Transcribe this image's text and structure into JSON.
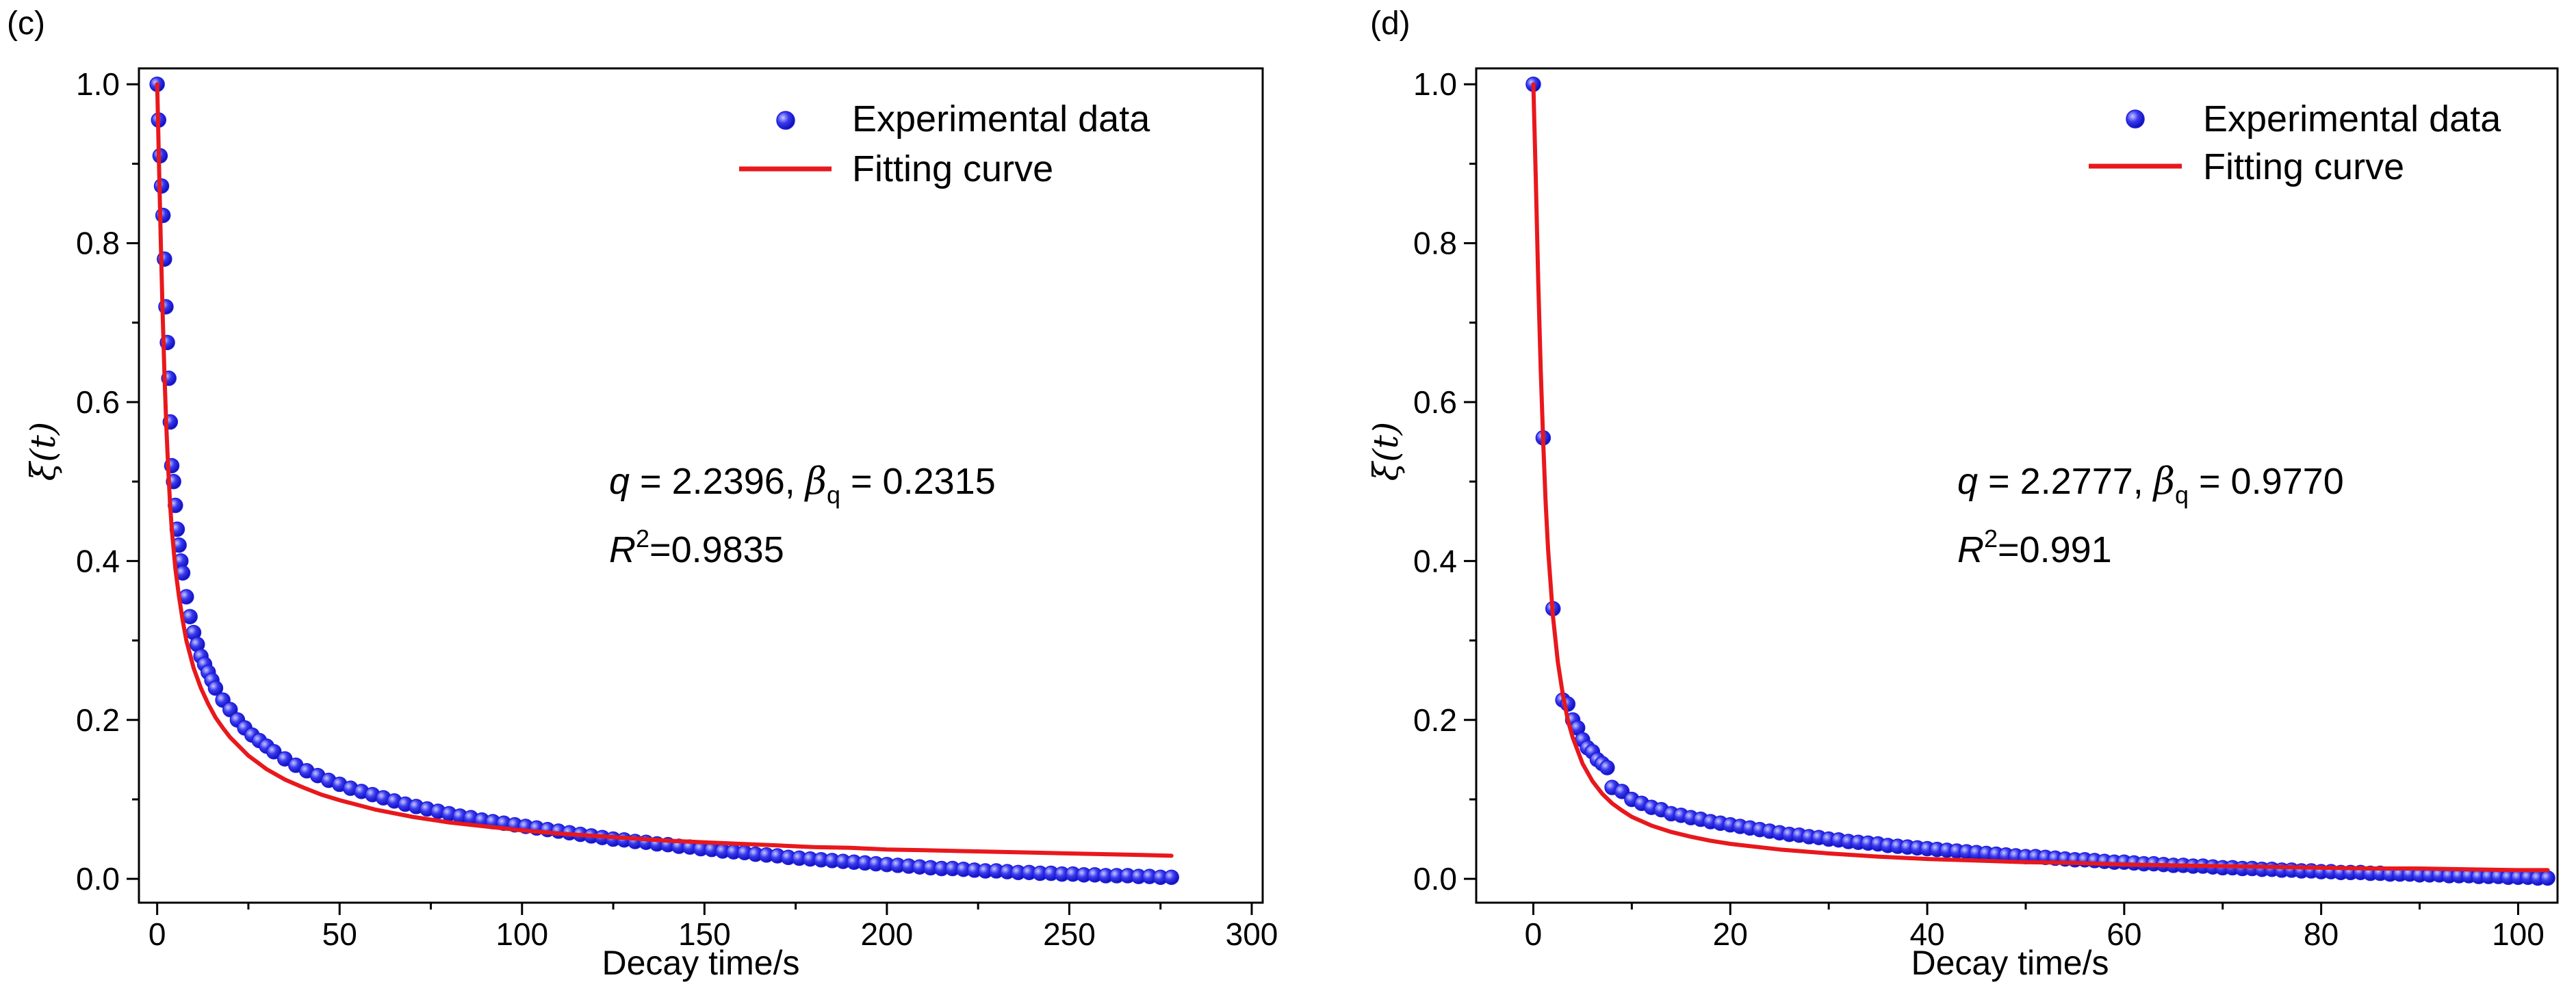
{
  "colors": {
    "data_marker": "#1d1de0",
    "data_marker_highlight": "#b7b7ff",
    "fit_line": "#e8181c",
    "axis": "#000000"
  },
  "chart_data": [
    {
      "panel_label": "(c)",
      "type": "scatter",
      "title": "",
      "xlabel": "Decay time/s",
      "ylabel": "ξ(t)",
      "xlim": [
        -5,
        303
      ],
      "ylim": [
        -0.03,
        1.02
      ],
      "xticks": [
        0,
        50,
        100,
        150,
        200,
        250,
        300
      ],
      "xtick_labels": [
        "0",
        "50",
        "100",
        "150",
        "200",
        "250",
        "300"
      ],
      "yticks": [
        0.0,
        0.2,
        0.4,
        0.6,
        0.8,
        1.0
      ],
      "ytick_labels": [
        "0.0",
        "0.2",
        "0.4",
        "0.6",
        "0.8",
        "1.0"
      ],
      "legend": [
        "Experimental data",
        "Fitting curve"
      ],
      "legend_position": "top-right",
      "annotation": {
        "q_symbol": "q",
        "q_text": " = 2.2396, ",
        "beta_symbol": "β",
        "beta_sub": "q",
        "beta_text": " = 0.2315",
        "r_symbol": "R",
        "r_sup": "2",
        "r_text": "=0.9835"
      },
      "series": [
        {
          "name": "Experimental data",
          "kind": "scatter",
          "x": [
            0,
            0.4,
            0.8,
            1.2,
            1.6,
            2,
            2.4,
            2.8,
            3.2,
            3.6,
            4,
            4.5,
            5,
            5.5,
            6,
            6.5,
            7,
            8,
            9,
            10,
            11,
            12,
            13,
            14,
            15,
            16,
            18,
            20,
            22,
            24,
            26,
            28,
            30,
            32,
            35,
            38,
            41,
            44,
            47,
            50,
            53,
            56,
            59,
            62,
            65,
            68,
            71,
            74,
            77,
            80,
            83,
            86,
            89,
            92,
            95,
            98,
            101,
            104,
            107,
            110,
            113,
            116,
            119,
            122,
            125,
            128,
            131,
            134,
            137,
            140,
            143,
            146,
            149,
            152,
            155,
            158,
            161,
            164,
            167,
            170,
            173,
            176,
            179,
            182,
            185,
            188,
            191,
            194,
            197,
            200,
            203,
            206,
            209,
            212,
            215,
            218,
            221,
            224,
            227,
            230,
            233,
            236,
            239,
            242,
            245,
            248,
            251,
            254,
            257,
            260,
            263,
            266,
            269,
            272,
            275,
            278
          ],
          "y": [
            1.0,
            0.955,
            0.91,
            0.872,
            0.835,
            0.78,
            0.72,
            0.675,
            0.63,
            0.575,
            0.52,
            0.5,
            0.47,
            0.44,
            0.42,
            0.4,
            0.385,
            0.355,
            0.33,
            0.31,
            0.295,
            0.28,
            0.27,
            0.26,
            0.25,
            0.24,
            0.225,
            0.213,
            0.2,
            0.19,
            0.181,
            0.174,
            0.167,
            0.16,
            0.151,
            0.143,
            0.136,
            0.13,
            0.124,
            0.119,
            0.114,
            0.11,
            0.106,
            0.102,
            0.098,
            0.094,
            0.091,
            0.088,
            0.085,
            0.082,
            0.079,
            0.077,
            0.074,
            0.072,
            0.07,
            0.068,
            0.066,
            0.064,
            0.062,
            0.06,
            0.058,
            0.056,
            0.054,
            0.052,
            0.05,
            0.049,
            0.047,
            0.046,
            0.044,
            0.043,
            0.041,
            0.04,
            0.038,
            0.037,
            0.035,
            0.034,
            0.033,
            0.031,
            0.03,
            0.029,
            0.027,
            0.026,
            0.025,
            0.024,
            0.023,
            0.022,
            0.021,
            0.02,
            0.019,
            0.018,
            0.017,
            0.016,
            0.015,
            0.014,
            0.013,
            0.013,
            0.012,
            0.011,
            0.01,
            0.01,
            0.009,
            0.008,
            0.008,
            0.007,
            0.007,
            0.006,
            0.006,
            0.005,
            0.005,
            0.004,
            0.004,
            0.004,
            0.003,
            0.003,
            0.002,
            0.002
          ]
        },
        {
          "name": "Fitting curve",
          "kind": "line",
          "x": [
            0,
            0.5,
            1,
            1.5,
            2,
            2.5,
            3,
            3.5,
            4,
            5,
            6,
            7,
            8,
            10,
            12,
            14,
            16,
            18,
            20,
            25,
            30,
            35,
            40,
            45,
            50,
            60,
            70,
            80,
            90,
            100,
            110,
            120,
            130,
            140,
            150,
            160,
            170,
            180,
            190,
            200,
            210,
            220,
            230,
            240,
            250,
            260,
            270,
            278
          ],
          "y": [
            1.0,
            0.9,
            0.8,
            0.71,
            0.635,
            0.57,
            0.52,
            0.475,
            0.44,
            0.39,
            0.355,
            0.325,
            0.3,
            0.265,
            0.24,
            0.22,
            0.203,
            0.19,
            0.178,
            0.155,
            0.138,
            0.125,
            0.115,
            0.106,
            0.099,
            0.087,
            0.078,
            0.071,
            0.066,
            0.061,
            0.057,
            0.054,
            0.051,
            0.048,
            0.046,
            0.044,
            0.042,
            0.04,
            0.039,
            0.037,
            0.036,
            0.035,
            0.034,
            0.033,
            0.032,
            0.031,
            0.03,
            0.029
          ]
        }
      ]
    },
    {
      "panel_label": "(d)",
      "type": "scatter",
      "title": "",
      "xlabel": "Decay time/s",
      "ylabel": "ξ(t)",
      "xlim": [
        -5.8,
        104
      ],
      "ylim": [
        -0.03,
        1.02
      ],
      "xticks": [
        0,
        20,
        40,
        60,
        80,
        100
      ],
      "xtick_labels": [
        "0",
        "20",
        "40",
        "60",
        "80",
        "100"
      ],
      "yticks": [
        0.0,
        0.2,
        0.4,
        0.6,
        0.8,
        1.0
      ],
      "ytick_labels": [
        "0.0",
        "0.2",
        "0.4",
        "0.6",
        "0.8",
        "1.0"
      ],
      "legend": [
        "Experimental data",
        "Fitting curve"
      ],
      "legend_position": "top-right",
      "annotation": {
        "q_symbol": "q",
        "q_text": " = 2.2777, ",
        "beta_symbol": "β",
        "beta_sub": "q",
        "beta_text": " = 0.9770",
        "r_symbol": "R",
        "r_sup": "2",
        "r_text": "=0.991"
      },
      "series": [
        {
          "name": "Experimental data",
          "kind": "scatter",
          "x": [
            0,
            1,
            2,
            3,
            3.5,
            4,
            4.5,
            5,
            5.5,
            6,
            6.5,
            7,
            7.5,
            8,
            9,
            10,
            11,
            12,
            13,
            14,
            15,
            16,
            17,
            18,
            19,
            20,
            21,
            22,
            23,
            24,
            25,
            26,
            27,
            28,
            29,
            30,
            31,
            32,
            33,
            34,
            35,
            36,
            37,
            38,
            39,
            40,
            41,
            42,
            43,
            44,
            45,
            46,
            47,
            48,
            49,
            50,
            51,
            52,
            53,
            54,
            55,
            56,
            57,
            58,
            59,
            60,
            61,
            62,
            63,
            64,
            65,
            66,
            67,
            68,
            69,
            70,
            71,
            72,
            73,
            74,
            75,
            76,
            77,
            78,
            79,
            80,
            81,
            82,
            83,
            84,
            85,
            86,
            87,
            88,
            89,
            90,
            91,
            92,
            93,
            94,
            95,
            96,
            97,
            98,
            99,
            100,
            101,
            102,
            103
          ],
          "y": [
            1.0,
            0.555,
            0.34,
            0.225,
            0.22,
            0.2,
            0.19,
            0.175,
            0.165,
            0.16,
            0.15,
            0.145,
            0.14,
            0.115,
            0.11,
            0.1,
            0.095,
            0.09,
            0.087,
            0.082,
            0.08,
            0.077,
            0.075,
            0.072,
            0.07,
            0.068,
            0.066,
            0.064,
            0.062,
            0.06,
            0.058,
            0.056,
            0.055,
            0.053,
            0.052,
            0.05,
            0.049,
            0.047,
            0.046,
            0.045,
            0.044,
            0.042,
            0.041,
            0.04,
            0.039,
            0.038,
            0.037,
            0.036,
            0.035,
            0.034,
            0.033,
            0.032,
            0.031,
            0.03,
            0.029,
            0.028,
            0.028,
            0.027,
            0.026,
            0.025,
            0.024,
            0.024,
            0.023,
            0.022,
            0.021,
            0.021,
            0.02,
            0.019,
            0.019,
            0.018,
            0.017,
            0.017,
            0.016,
            0.016,
            0.015,
            0.014,
            0.014,
            0.013,
            0.013,
            0.012,
            0.012,
            0.011,
            0.011,
            0.01,
            0.01,
            0.009,
            0.009,
            0.008,
            0.008,
            0.008,
            0.007,
            0.007,
            0.006,
            0.006,
            0.006,
            0.005,
            0.005,
            0.005,
            0.004,
            0.004,
            0.004,
            0.003,
            0.003,
            0.003,
            0.002,
            0.002,
            0.002,
            0.001,
            0.001
          ]
        },
        {
          "name": "Fitting curve",
          "kind": "line",
          "x": [
            0,
            0.25,
            0.5,
            0.75,
            1,
            1.25,
            1.5,
            2,
            2.5,
            3,
            3.5,
            4,
            5,
            6,
            7,
            8,
            9,
            10,
            12,
            14,
            16,
            18,
            20,
            25,
            30,
            35,
            40,
            45,
            50,
            55,
            60,
            65,
            70,
            75,
            80,
            85,
            90,
            95,
            100,
            103
          ],
          "y": [
            1.0,
            0.88,
            0.75,
            0.64,
            0.55,
            0.475,
            0.415,
            0.33,
            0.272,
            0.232,
            0.2,
            0.178,
            0.145,
            0.123,
            0.107,
            0.095,
            0.086,
            0.078,
            0.067,
            0.059,
            0.053,
            0.048,
            0.044,
            0.037,
            0.032,
            0.028,
            0.025,
            0.023,
            0.021,
            0.02,
            0.018,
            0.017,
            0.016,
            0.015,
            0.014,
            0.013,
            0.013,
            0.012,
            0.011,
            0.011
          ]
        }
      ]
    }
  ]
}
